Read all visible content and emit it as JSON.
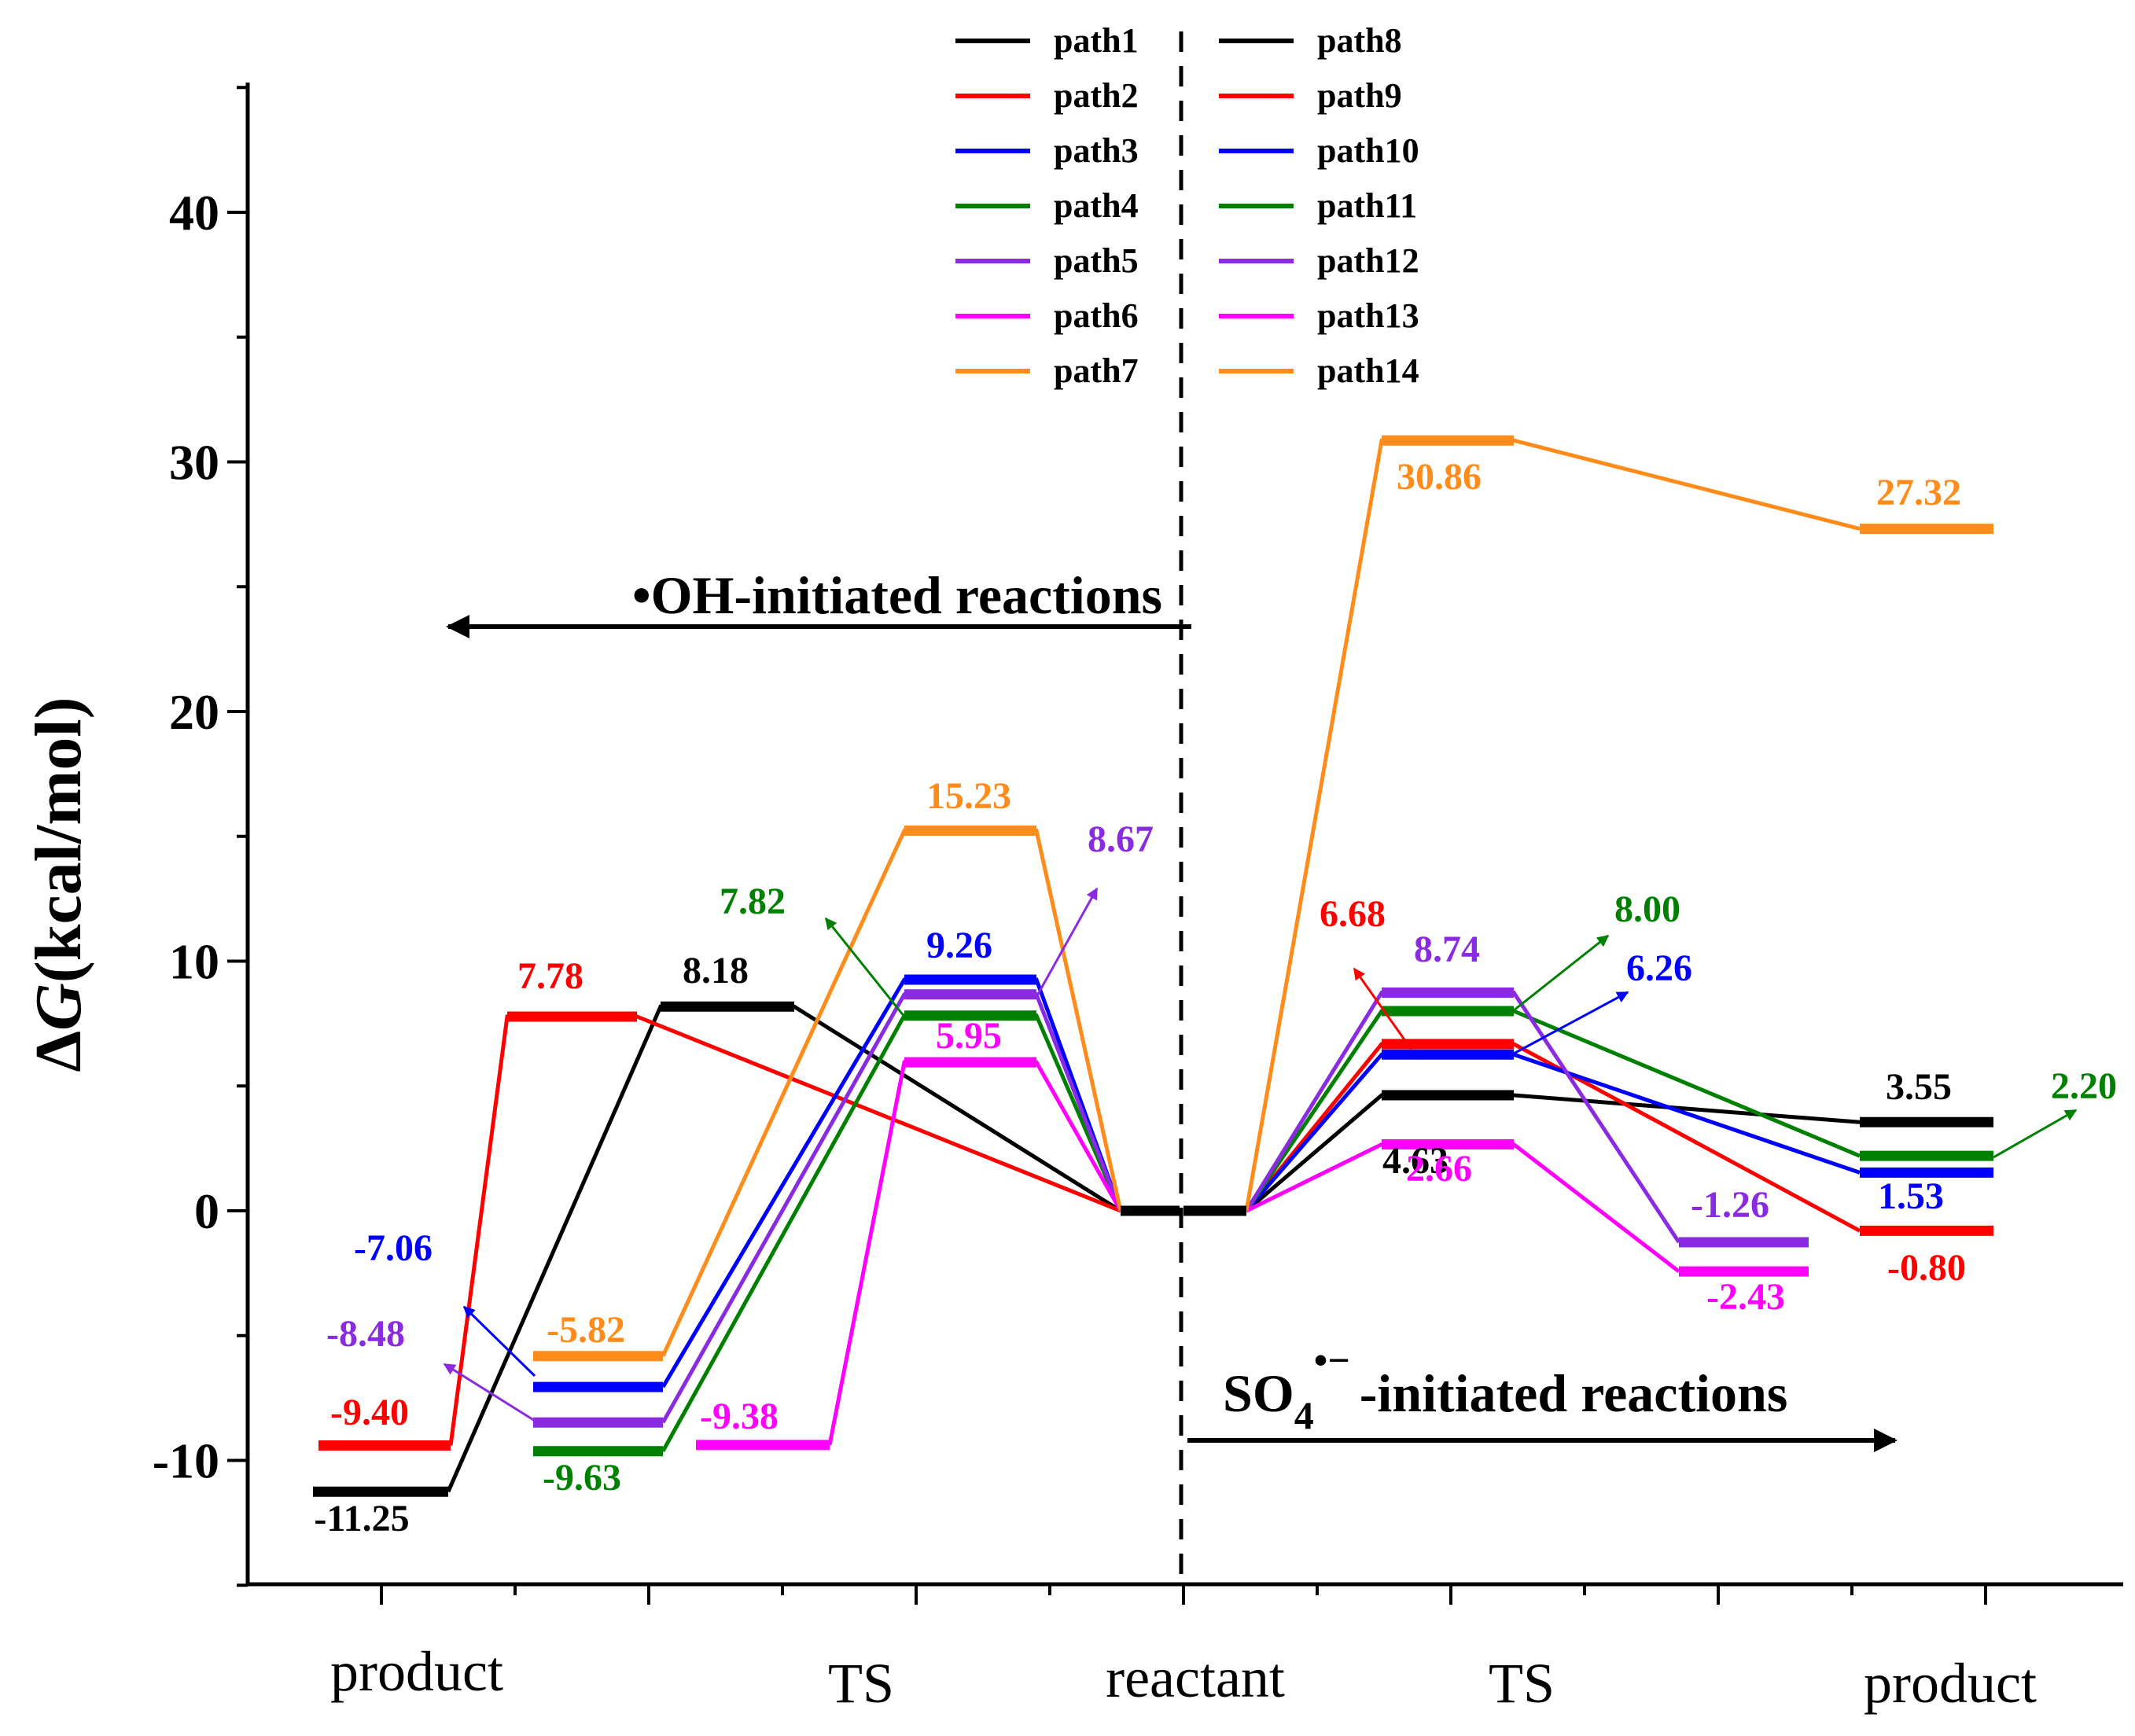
{
  "chart_data": {
    "type": "line",
    "ylabel_prefix": "Δ",
    "ylabel_italic": "G",
    "ylabel_suffix": "(kcal/mol)",
    "ylim": [
      -15,
      45
    ],
    "yticks": [
      -10,
      0,
      10,
      20,
      30,
      40
    ],
    "categories": [
      "product",
      "TS",
      "reactant",
      "TS",
      "product"
    ],
    "annotations": {
      "oh_label": "•OH-initiated reactions",
      "so4_prefix": "SO",
      "so4_sub": "4",
      "so4_sup": "•−",
      "so4_suffix": "-initiated reactions"
    },
    "colors": {
      "black": "#000000",
      "red": "#ff0000",
      "blue": "#0000ff",
      "green": "#008000",
      "purple": "#8a2be2",
      "magenta": "#ff00ff",
      "orange": "#ff8c1a"
    },
    "series": [
      {
        "name": "path1",
        "color": "black",
        "side": "OH",
        "product": -11.25,
        "ts": 8.18
      },
      {
        "name": "path2",
        "color": "red",
        "side": "OH",
        "product": -9.4,
        "ts": 7.78
      },
      {
        "name": "path3",
        "color": "blue",
        "side": "OH",
        "product": -7.06,
        "ts": 9.26
      },
      {
        "name": "path4",
        "color": "green",
        "side": "OH",
        "product": -9.63,
        "ts": 7.82
      },
      {
        "name": "path5",
        "color": "purple",
        "side": "OH",
        "product": -8.48,
        "ts": 8.67
      },
      {
        "name": "path6",
        "color": "magenta",
        "side": "OH",
        "product": -9.38,
        "ts": 5.95
      },
      {
        "name": "path7",
        "color": "orange",
        "side": "OH",
        "product": -5.82,
        "ts": 15.23
      },
      {
        "name": "path8",
        "color": "black",
        "side": "SO4",
        "ts": 4.63,
        "product": 3.55
      },
      {
        "name": "path9",
        "color": "red",
        "side": "SO4",
        "ts": 6.68,
        "product": -0.8
      },
      {
        "name": "path10",
        "color": "blue",
        "side": "SO4",
        "ts": 6.26,
        "product": 1.53
      },
      {
        "name": "path11",
        "color": "green",
        "side": "SO4",
        "ts": 8.0,
        "product": 2.2
      },
      {
        "name": "path12",
        "color": "purple",
        "side": "SO4",
        "ts": 8.74,
        "product": -1.26
      },
      {
        "name": "path13",
        "color": "magenta",
        "side": "SO4",
        "ts": 2.66,
        "product": -2.43
      },
      {
        "name": "path14",
        "color": "orange",
        "side": "SO4",
        "ts": 30.86,
        "product": 27.32
      }
    ],
    "reactant_value": 0,
    "value_labels": [
      "-11.25",
      "-9.40",
      "-7.06",
      "-9.63",
      "-8.48",
      "-9.38",
      "-5.82",
      "8.18",
      "7.78",
      "9.26",
      "7.82",
      "8.67",
      "5.95",
      "15.23",
      "4.63",
      "6.68",
      "6.26",
      "8.00",
      "8.74",
      "2.66",
      "30.86",
      "3.55",
      "-0.80",
      "1.53",
      "2.20",
      "-1.26",
      "-2.43",
      "27.32"
    ]
  }
}
